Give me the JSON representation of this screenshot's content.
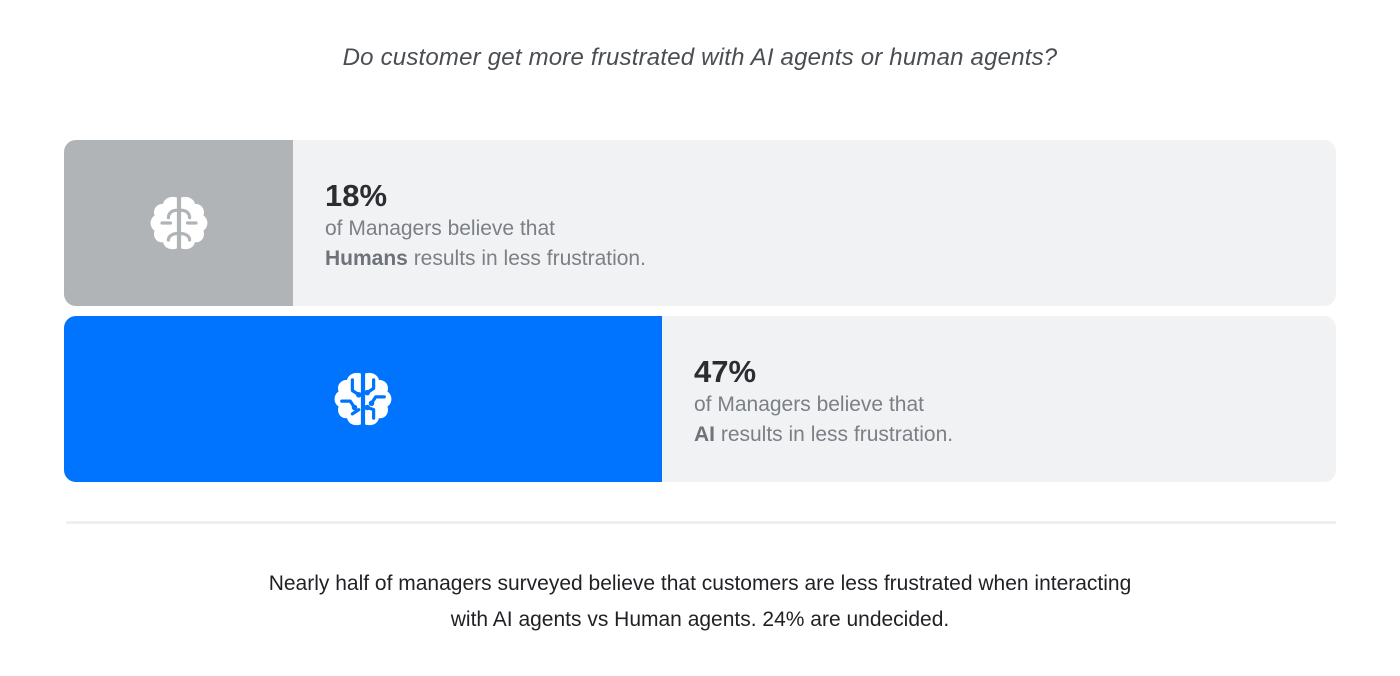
{
  "question": "Do customer get more frustrated with AI agents or human agents?",
  "chart_data": {
    "type": "bar",
    "orientation": "horizontal",
    "axis_max": 100,
    "categories": [
      "Humans",
      "AI"
    ],
    "values": [
      18,
      47
    ],
    "rows": [
      {
        "value": 18,
        "pct_label": "18%",
        "line1": "of Managers believe that",
        "subject": "Humans",
        "line2_rest": " results in less frustration.",
        "fill_color": "#b1b4b7",
        "icon": "brain-icon"
      },
      {
        "value": 47,
        "pct_label": "47%",
        "line1": "of Managers believe that",
        "subject": "AI",
        "line2_rest": " results in less frustration.",
        "fill_color": "#0074ff",
        "icon": "ai-brain-circuit-icon"
      }
    ]
  },
  "footnote": {
    "line1": "Nearly half of managers surveyed believe that customers are less frustrated when interacting",
    "line2": "with AI agents vs Human agents. 24% are undecided."
  },
  "colors": {
    "track": "#f1f2f4",
    "human_fill": "#b1b4b7",
    "ai_fill": "#0074ff"
  }
}
